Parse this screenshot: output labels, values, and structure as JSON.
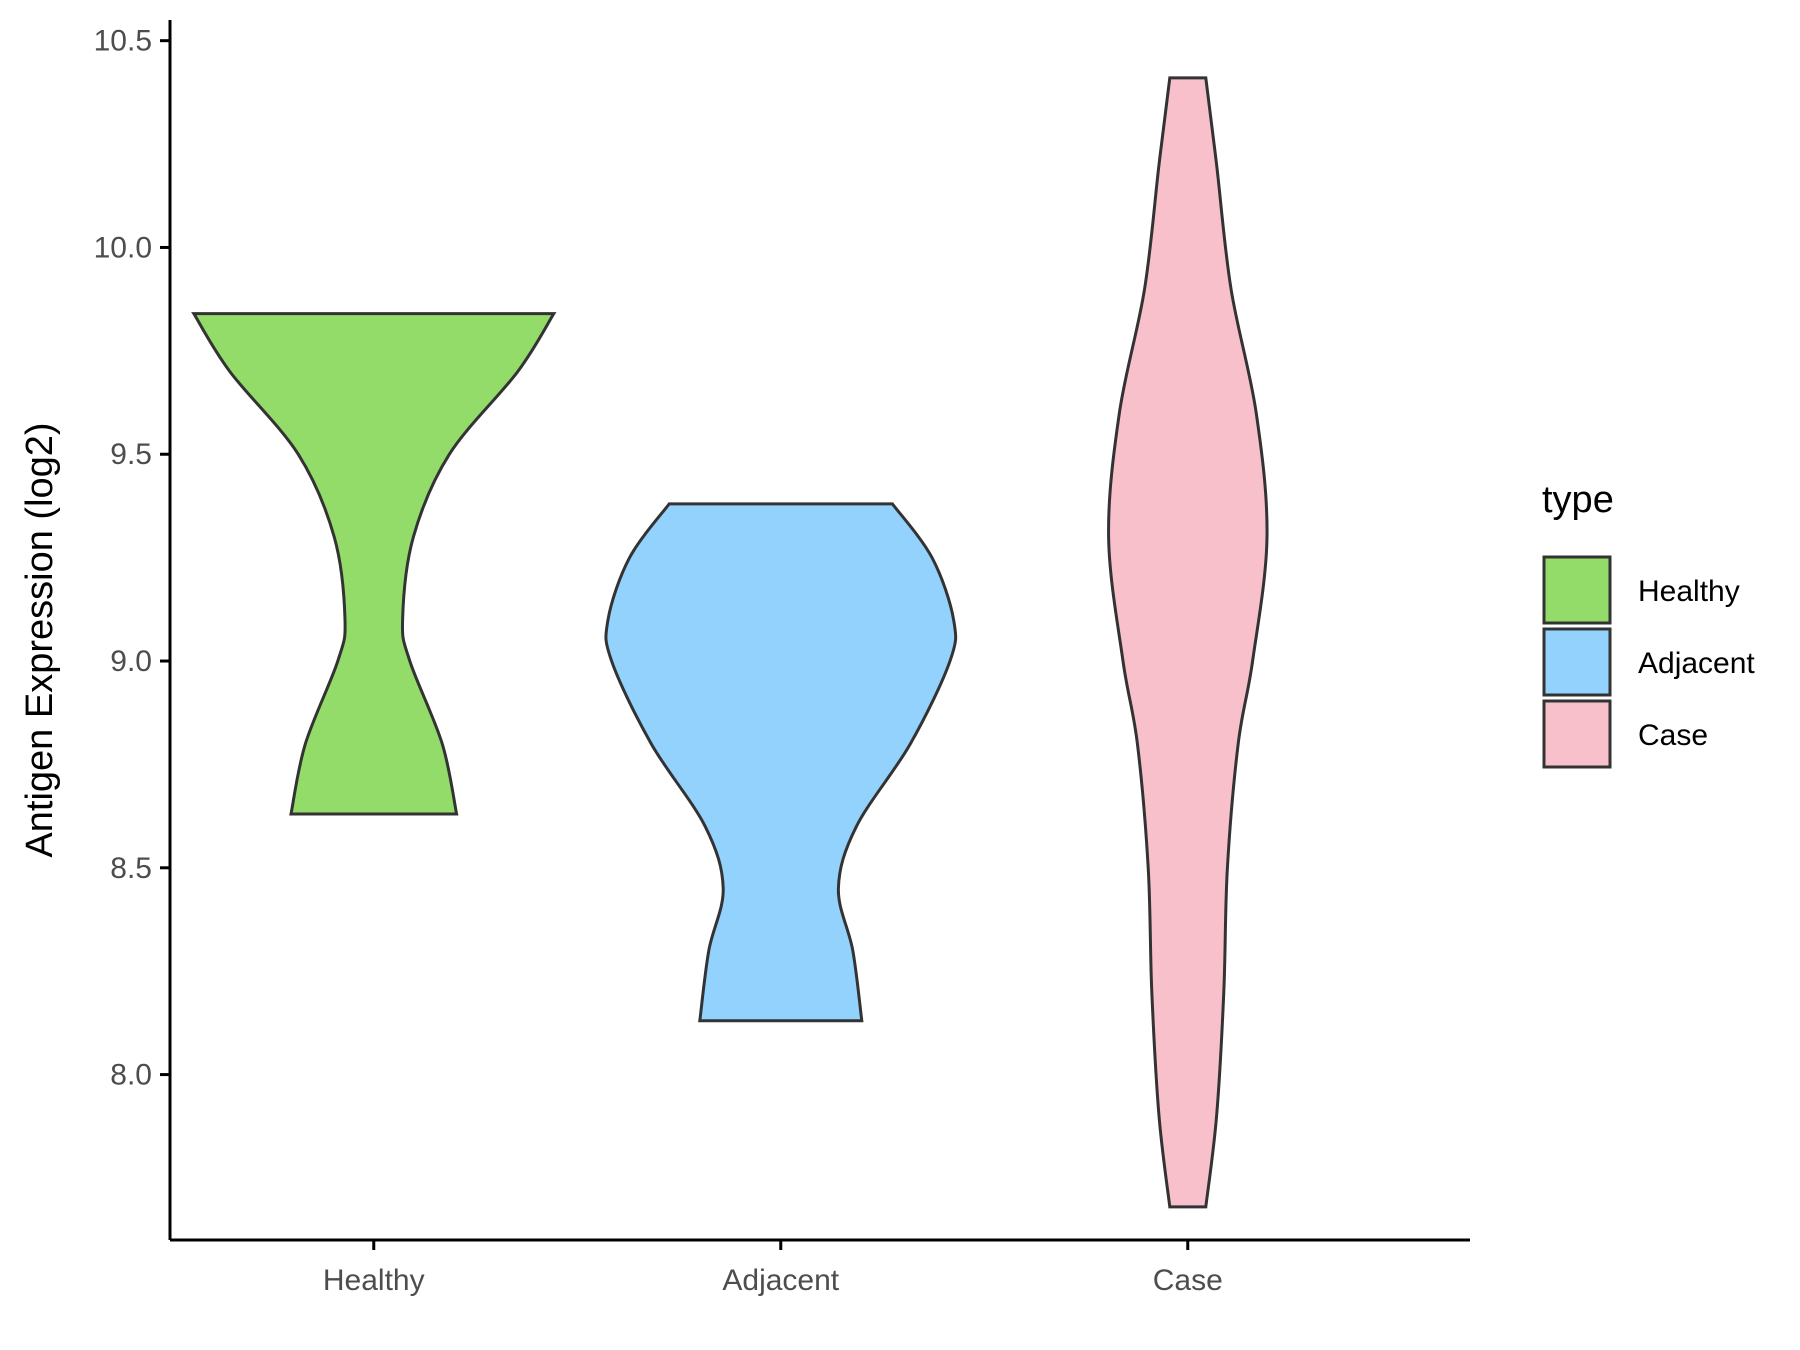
{
  "chart_data": {
    "type": "violin",
    "title": "",
    "xlabel": "",
    "ylabel": "Antigen Expression (log2)",
    "ylim": [
      7.6,
      10.55
    ],
    "y_ticks": [
      "8.0",
      "8.5",
      "9.0",
      "9.5",
      "10.0",
      "10.5"
    ],
    "y_tick_values": [
      8.0,
      8.5,
      9.0,
      9.5,
      10.0,
      10.5
    ],
    "categories": [
      "Healthy",
      "Adjacent",
      "Case"
    ],
    "grid": false,
    "legend": {
      "title": "type",
      "placement": "right",
      "entries": [
        "Healthy",
        "Adjacent",
        "Case"
      ]
    },
    "series": [
      {
        "name": "Healthy",
        "color": "#93dc6a",
        "min": 8.63,
        "max": 9.84,
        "density_profile": [
          {
            "y": 8.63,
            "half_width": 0.46
          },
          {
            "y": 8.8,
            "half_width": 0.38
          },
          {
            "y": 9.0,
            "half_width": 0.2
          },
          {
            "y": 9.1,
            "half_width": 0.16
          },
          {
            "y": 9.3,
            "half_width": 0.22
          },
          {
            "y": 9.5,
            "half_width": 0.42
          },
          {
            "y": 9.7,
            "half_width": 0.8
          },
          {
            "y": 9.84,
            "half_width": 1.0
          }
        ]
      },
      {
        "name": "Adjacent",
        "color": "#92d2fd",
        "min": 8.13,
        "max": 9.38,
        "density_profile": [
          {
            "y": 8.13,
            "half_width": 0.45
          },
          {
            "y": 8.3,
            "half_width": 0.4
          },
          {
            "y": 8.45,
            "half_width": 0.32
          },
          {
            "y": 8.6,
            "half_width": 0.42
          },
          {
            "y": 8.8,
            "half_width": 0.72
          },
          {
            "y": 9.0,
            "half_width": 0.94
          },
          {
            "y": 9.1,
            "half_width": 0.96
          },
          {
            "y": 9.25,
            "half_width": 0.84
          },
          {
            "y": 9.38,
            "half_width": 0.62
          }
        ]
      },
      {
        "name": "Case",
        "color": "#f8c0cb",
        "min": 7.68,
        "max": 10.41,
        "density_profile": [
          {
            "y": 7.68,
            "half_width": 0.1
          },
          {
            "y": 7.9,
            "half_width": 0.16
          },
          {
            "y": 8.2,
            "half_width": 0.2
          },
          {
            "y": 8.5,
            "half_width": 0.22
          },
          {
            "y": 8.8,
            "half_width": 0.28
          },
          {
            "y": 9.0,
            "half_width": 0.36
          },
          {
            "y": 9.3,
            "half_width": 0.44
          },
          {
            "y": 9.6,
            "half_width": 0.38
          },
          {
            "y": 9.9,
            "half_width": 0.24
          },
          {
            "y": 10.2,
            "half_width": 0.16
          },
          {
            "y": 10.41,
            "half_width": 0.1
          }
        ]
      }
    ]
  }
}
